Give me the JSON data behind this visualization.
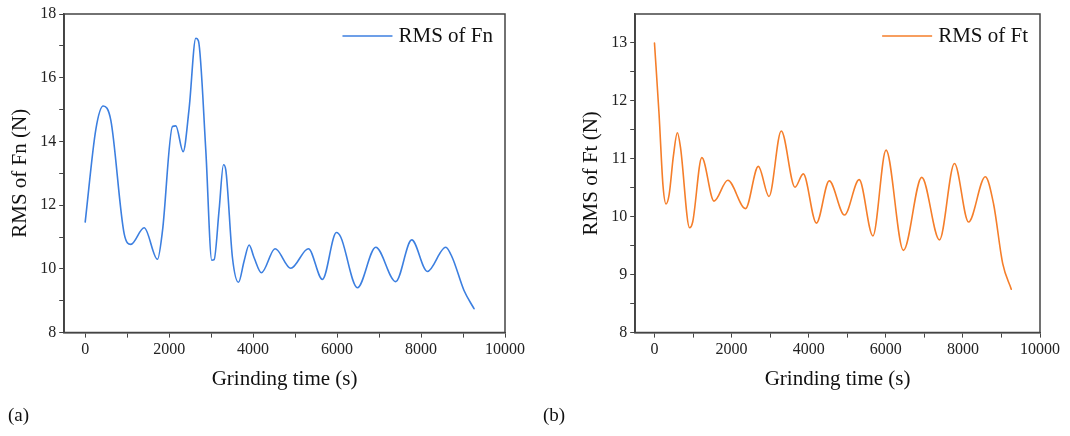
{
  "chart_data": [
    {
      "type": "line",
      "xlabel": "Grinding time (s)",
      "ylabel": "RMS of Fn (N)",
      "annotations": [
        "(a)"
      ],
      "legend": "top right",
      "grid": false,
      "marker": "none",
      "line_style": "solid",
      "xlim": [
        -500,
        10000
      ],
      "xticks": [
        0,
        {
          "value": 1000,
          "label": null
        },
        2000,
        {
          "value": 3000,
          "label": null
        },
        4000,
        {
          "value": 5000,
          "label": null
        },
        6000,
        {
          "value": 7000,
          "label": null
        },
        8000,
        {
          "value": 9000,
          "label": null
        },
        10000
      ],
      "ylim": [
        8,
        18
      ],
      "yticks": [
        8,
        {
          "value": 9,
          "label": null
        },
        10,
        {
          "value": 11,
          "label": null
        },
        12,
        {
          "value": 13,
          "label": null
        },
        14,
        {
          "value": 15,
          "label": null
        },
        16,
        {
          "value": 17,
          "label": null
        },
        18
      ],
      "series": [
        {
          "name": "RMS of Fn",
          "color": "#3c7fe0",
          "x": [
            0,
            254,
            429,
            611,
            929,
            1087,
            1405,
            1722,
            1841,
            2079,
            2159,
            2333,
            2476,
            2635,
            2698,
            2873,
            3016,
            3071,
            3190,
            3294,
            3349,
            3508,
            3651,
            3786,
            3905,
            4024,
            4198,
            4524,
            4897,
            5317,
            5651,
            5984,
            6087,
            6484,
            6921,
            7397,
            7778,
            8151,
            8587,
            8746,
            9024,
            9262
          ],
          "values": [
            11.47,
            14.38,
            15.11,
            14.66,
            11.1,
            10.77,
            11.29,
            10.3,
            11.19,
            14.47,
            14.49,
            13.68,
            15.04,
            17.24,
            17.15,
            13.72,
            10.27,
            10.29,
            11.85,
            13.27,
            13.11,
            10.35,
            9.58,
            10.25,
            10.75,
            10.35,
            9.88,
            10.63,
            10.02,
            10.63,
            9.67,
            11.14,
            11.0,
            9.41,
            10.68,
            9.6,
            10.91,
            9.92,
            10.68,
            10.35,
            9.32,
            8.75
          ]
        }
      ]
    },
    {
      "type": "line",
      "xlabel": "Grinding time (s)",
      "ylabel": "RMS of Ft (N)",
      "annotations": [
        "(b)"
      ],
      "legend": "top right",
      "grid": false,
      "marker": "none",
      "line_style": "solid",
      "xlim": [
        -500,
        10000
      ],
      "xticks": [
        0,
        {
          "value": 1000,
          "label": null
        },
        2000,
        {
          "value": 3000,
          "label": null
        },
        4000,
        {
          "value": 5000,
          "label": null
        },
        6000,
        {
          "value": 7000,
          "label": null
        },
        8000,
        {
          "value": 9000,
          "label": null
        },
        10000
      ],
      "ylim": [
        8,
        13.5
      ],
      "yticks": [
        8,
        {
          "value": 8.5,
          "label": null
        },
        9,
        {
          "value": 9.5,
          "label": null
        },
        10,
        {
          "value": 10.5,
          "label": null
        },
        11,
        {
          "value": 11.5,
          "label": null
        },
        12,
        {
          "value": 12.5,
          "label": null
        },
        13
      ],
      "series": [
        {
          "name": "RMS of Ft",
          "color": "#f57e2a",
          "x": [
            0,
            119,
            222,
            301,
            380,
            491,
            594,
            674,
            911,
            991,
            1228,
            1545,
            1902,
            2361,
            2694,
            2971,
            3288,
            3645,
            3859,
            4200,
            4533,
            4929,
            5309,
            5666,
            6006,
            6458,
            6933,
            7393,
            7781,
            8146,
            8582,
            8796,
            9033,
            9255
          ],
          "values": [
            13.0,
            11.77,
            10.53,
            10.22,
            10.38,
            11.05,
            11.45,
            11.2,
            9.81,
            9.91,
            11.02,
            10.27,
            10.63,
            10.14,
            10.87,
            10.35,
            11.48,
            10.51,
            10.74,
            9.89,
            10.62,
            10.03,
            10.64,
            9.67,
            11.15,
            9.42,
            10.68,
            9.6,
            10.92,
            9.91,
            10.69,
            10.22,
            9.19,
            8.75
          ]
        }
      ]
    }
  ]
}
